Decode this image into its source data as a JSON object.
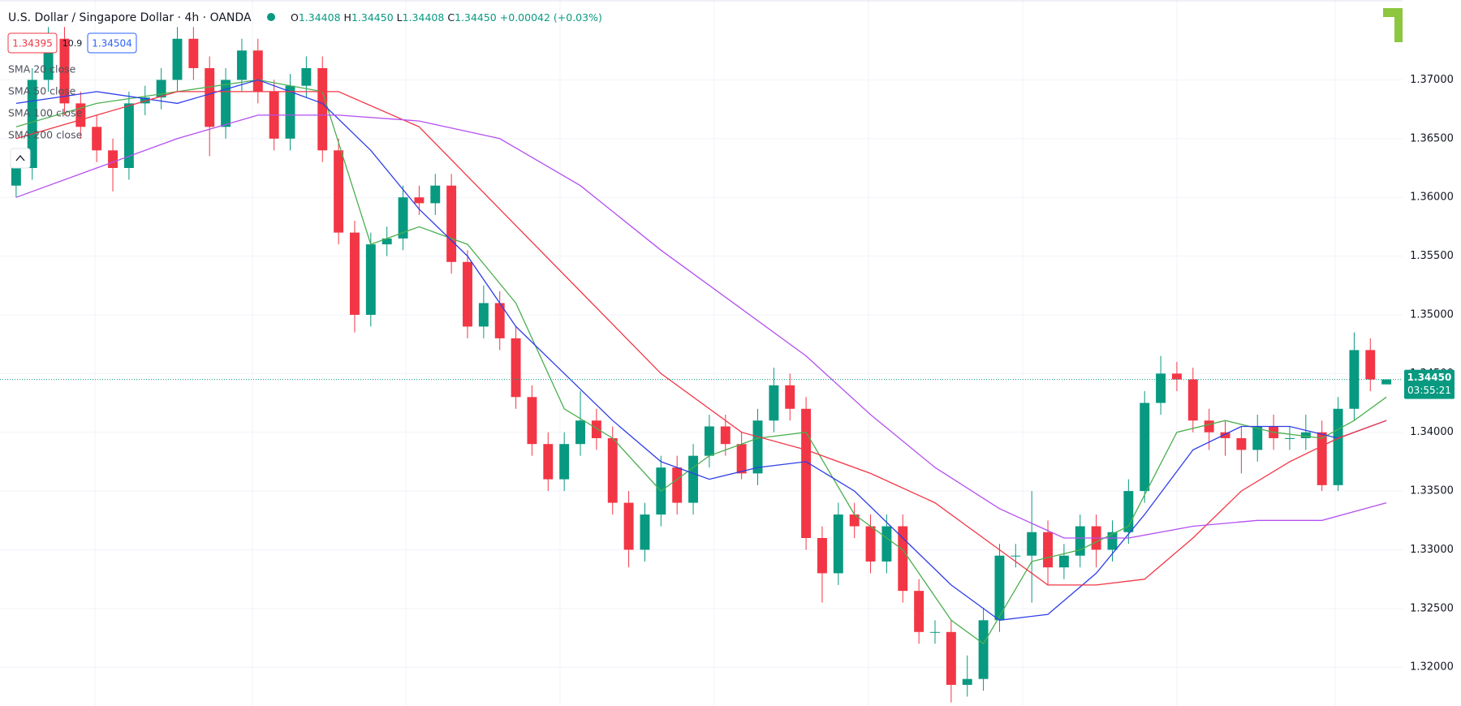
{
  "chart_data": {
    "type": "candlestick",
    "title": "U.S. Dollar / Singapore Dollar · 4h · OANDA",
    "ohlc_header": {
      "o_key": "O",
      "o": "1.34408",
      "h_key": "H",
      "h": "1.34450",
      "l_key": "L",
      "l": "1.34408",
      "c_key": "C",
      "c": "1.34450",
      "change": "+0.00042 (+0.03%)"
    },
    "sell_price": "1.34395",
    "spread": "10.9",
    "buy_price": "1.34504",
    "last_price_label": "1.34450",
    "countdown": "03:55:21",
    "up_color": "#089981",
    "down_color": "#f23645",
    "open": [
      1.361,
      1.3625,
      1.37,
      1.3735,
      1.368,
      1.366,
      1.364,
      1.3625,
      1.368,
      1.3685,
      1.37,
      1.3735,
      1.371,
      1.366,
      1.37,
      1.3725,
      1.369,
      1.365,
      1.3695,
      1.371,
      1.364,
      1.357,
      1.35,
      1.356,
      1.3565,
      1.36,
      1.3595,
      1.361,
      1.3545,
      1.349,
      1.351,
      1.348,
      1.343,
      1.339,
      1.336,
      1.339,
      1.341,
      1.3395,
      1.334,
      1.33,
      1.333,
      1.337,
      1.334,
      1.338,
      1.3405,
      1.339,
      1.3365,
      1.341,
      1.344,
      1.342,
      1.331,
      1.328,
      1.333,
      1.332,
      1.329,
      1.332,
      1.3265,
      1.323,
      1.323,
      1.3185,
      1.319,
      1.324,
      1.3295,
      1.3295,
      1.3315,
      1.3285,
      1.3295,
      1.332,
      1.33,
      1.3315,
      1.335,
      1.3425,
      1.345,
      1.3445,
      1.341,
      1.34,
      1.3395,
      1.3385,
      1.3405,
      1.3395,
      1.3395,
      1.34,
      1.3355,
      1.342,
      1.347,
      1.34408
    ],
    "high": [
      1.3635,
      1.371,
      1.3745,
      1.3745,
      1.369,
      1.367,
      1.365,
      1.369,
      1.3695,
      1.371,
      1.3745,
      1.3745,
      1.372,
      1.371,
      1.3735,
      1.3735,
      1.37,
      1.3705,
      1.372,
      1.372,
      1.365,
      1.358,
      1.357,
      1.3575,
      1.361,
      1.361,
      1.362,
      1.362,
      1.3555,
      1.3525,
      1.352,
      1.349,
      1.344,
      1.34,
      1.34,
      1.3435,
      1.342,
      1.3405,
      1.335,
      1.334,
      1.338,
      1.338,
      1.339,
      1.3415,
      1.3415,
      1.34,
      1.342,
      1.3455,
      1.345,
      1.343,
      1.332,
      1.334,
      1.334,
      1.333,
      1.333,
      1.333,
      1.3275,
      1.324,
      1.324,
      1.321,
      1.325,
      1.3305,
      1.3305,
      1.335,
      1.3325,
      1.3305,
      1.333,
      1.333,
      1.3325,
      1.336,
      1.3435,
      1.3465,
      1.346,
      1.3455,
      1.342,
      1.341,
      1.3405,
      1.3415,
      1.3415,
      1.3405,
      1.3415,
      1.341,
      1.343,
      1.3485,
      1.348,
      1.3445
    ],
    "low": [
      1.36,
      1.3615,
      1.369,
      1.367,
      1.365,
      1.363,
      1.3605,
      1.3615,
      1.367,
      1.3675,
      1.369,
      1.37,
      1.3635,
      1.365,
      1.369,
      1.368,
      1.364,
      1.364,
      1.3685,
      1.363,
      1.356,
      1.3485,
      1.349,
      1.355,
      1.3555,
      1.3585,
      1.3585,
      1.3535,
      1.348,
      1.348,
      1.347,
      1.342,
      1.338,
      1.335,
      1.335,
      1.338,
      1.3385,
      1.333,
      1.3285,
      1.329,
      1.332,
      1.333,
      1.333,
      1.337,
      1.338,
      1.336,
      1.3355,
      1.34,
      1.341,
      1.33,
      1.3255,
      1.327,
      1.331,
      1.328,
      1.328,
      1.3255,
      1.322,
      1.322,
      1.317,
      1.3175,
      1.318,
      1.323,
      1.3285,
      1.3255,
      1.327,
      1.3275,
      1.3285,
      1.3285,
      1.329,
      1.3305,
      1.334,
      1.3415,
      1.3435,
      1.34,
      1.3385,
      1.338,
      1.3365,
      1.3375,
      1.3385,
      1.3385,
      1.3385,
      1.335,
      1.335,
      1.341,
      1.3435,
      1.34408
    ],
    "close": [
      1.3625,
      1.37,
      1.3735,
      1.368,
      1.366,
      1.364,
      1.3625,
      1.368,
      1.3685,
      1.37,
      1.3735,
      1.371,
      1.366,
      1.37,
      1.3725,
      1.369,
      1.365,
      1.3695,
      1.371,
      1.364,
      1.357,
      1.35,
      1.356,
      1.3565,
      1.36,
      1.3595,
      1.361,
      1.3545,
      1.349,
      1.351,
      1.348,
      1.343,
      1.339,
      1.336,
      1.339,
      1.341,
      1.3395,
      1.334,
      1.33,
      1.333,
      1.337,
      1.334,
      1.338,
      1.3405,
      1.339,
      1.3365,
      1.341,
      1.344,
      1.342,
      1.331,
      1.328,
      1.333,
      1.332,
      1.329,
      1.332,
      1.3265,
      1.323,
      1.323,
      1.3185,
      1.319,
      1.324,
      1.3295,
      1.3295,
      1.3315,
      1.3285,
      1.3295,
      1.332,
      1.33,
      1.3315,
      1.335,
      1.3425,
      1.345,
      1.3445,
      1.341,
      1.34,
      1.3395,
      1.3385,
      1.3405,
      1.3395,
      1.3395,
      1.34,
      1.3355,
      1.342,
      1.347,
      1.3445,
      1.3445
    ],
    "series": [
      {
        "name": "SMA 20 close",
        "color": "#4caf50",
        "x": [
          0,
          5,
          10,
          15,
          19,
          22,
          25,
          28,
          31,
          34,
          37,
          40,
          43,
          46,
          49,
          52,
          55,
          58,
          60,
          63,
          66,
          69,
          72,
          75,
          78,
          81,
          83,
          85
        ],
        "values": [
          1.366,
          1.368,
          1.369,
          1.37,
          1.369,
          1.356,
          1.3575,
          1.356,
          1.351,
          1.342,
          1.3395,
          1.335,
          1.338,
          1.3395,
          1.34,
          1.333,
          1.33,
          1.324,
          1.322,
          1.329,
          1.33,
          1.332,
          1.34,
          1.341,
          1.34,
          1.3395,
          1.341,
          1.343
        ]
      },
      {
        "name": "SMA 50 close",
        "color": "#2f3ee8",
        "x": [
          0,
          5,
          10,
          15,
          19,
          22,
          25,
          28,
          31,
          34,
          37,
          40,
          43,
          46,
          49,
          52,
          55,
          58,
          61,
          64,
          67,
          70,
          73,
          76,
          79,
          82,
          85
        ],
        "values": [
          1.368,
          1.369,
          1.368,
          1.37,
          1.368,
          1.364,
          1.359,
          1.355,
          1.349,
          1.345,
          1.341,
          1.3375,
          1.336,
          1.337,
          1.3375,
          1.335,
          1.331,
          1.327,
          1.324,
          1.3245,
          1.328,
          1.333,
          1.3385,
          1.3405,
          1.3405,
          1.3395,
          1.341
        ]
      },
      {
        "name": "SMA 100 close",
        "color": "#f23645",
        "x": [
          0,
          5,
          10,
          15,
          20,
          25,
          30,
          35,
          40,
          45,
          49,
          53,
          57,
          61,
          64,
          67,
          70,
          73,
          76,
          79,
          82,
          85
        ],
        "values": [
          1.365,
          1.367,
          1.369,
          1.369,
          1.369,
          1.366,
          1.359,
          1.352,
          1.345,
          1.34,
          1.3385,
          1.3365,
          1.334,
          1.33,
          1.327,
          1.327,
          1.3275,
          1.331,
          1.335,
          1.3375,
          1.3395,
          1.341
        ]
      },
      {
        "name": "SMA 200 close",
        "color": "#b44ff0",
        "x": [
          0,
          5,
          10,
          15,
          20,
          25,
          30,
          35,
          40,
          45,
          49,
          53,
          57,
          61,
          65,
          69,
          73,
          77,
          81,
          85
        ],
        "values": [
          1.36,
          1.3625,
          1.365,
          1.367,
          1.367,
          1.3665,
          1.365,
          1.361,
          1.3555,
          1.3505,
          1.3465,
          1.3415,
          1.337,
          1.3335,
          1.331,
          1.331,
          1.332,
          1.3325,
          1.3325,
          1.334
        ]
      }
    ],
    "xlim": [
      -1,
      86
    ],
    "ylim": [
      1.3167,
      1.3768
    ],
    "yticks": [
      {
        "value": 1.32,
        "label": "1.32000"
      },
      {
        "value": 1.325,
        "label": "1.32500"
      },
      {
        "value": 1.33,
        "label": "1.33000"
      },
      {
        "value": 1.335,
        "label": "1.33500"
      },
      {
        "value": 1.34,
        "label": "1.34000"
      },
      {
        "value": 1.345,
        "label": "1.34500"
      },
      {
        "value": 1.35,
        "label": "1.35000"
      },
      {
        "value": 1.355,
        "label": "1.35500"
      },
      {
        "value": 1.36,
        "label": "1.36000"
      },
      {
        "value": 1.365,
        "label": "1.36500"
      },
      {
        "value": 1.37,
        "label": "1.37000"
      }
    ],
    "grid": true
  }
}
